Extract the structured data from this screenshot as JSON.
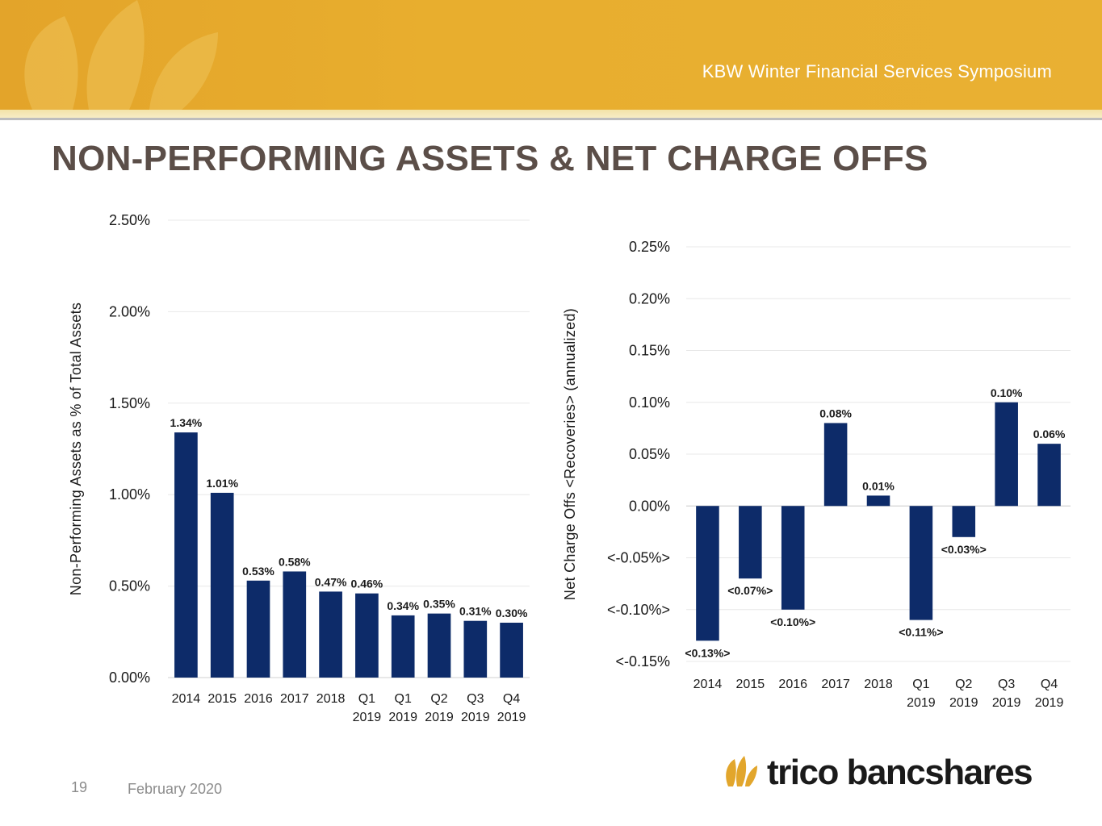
{
  "header": {
    "event_title": "KBW Winter Financial Services Symposium",
    "slide_title": "NON-PERFORMING ASSETS & NET CHARGE OFFS"
  },
  "footer": {
    "page_number": "19",
    "date": "February 2020",
    "company": "trico bancshares"
  },
  "colors": {
    "bar": "#0d2b69",
    "title": "#5b4e48",
    "banner": "#e6aa2d",
    "axis_text": "#1a1a1a",
    "grid": "#e8e8e8"
  },
  "chart_data": [
    {
      "type": "bar",
      "title": "",
      "ylabel": "Non-Performing Assets as % of Total Assets",
      "xlabel": "",
      "categories": [
        [
          "2014"
        ],
        [
          "2015"
        ],
        [
          "2016"
        ],
        [
          "2017"
        ],
        [
          "2018"
        ],
        [
          "Q1",
          "2019"
        ],
        [
          "Q1",
          "2019"
        ],
        [
          "Q2",
          "2019"
        ],
        [
          "Q3",
          "2019"
        ],
        [
          "Q4",
          "2019"
        ]
      ],
      "values": [
        1.34,
        1.01,
        0.53,
        0.58,
        0.47,
        0.46,
        0.34,
        0.35,
        0.31,
        0.3
      ],
      "data_labels": [
        "1.34%",
        "1.01%",
        "0.53%",
        "0.58%",
        "0.47%",
        "0.46%",
        "0.34%",
        "0.35%",
        "0.31%",
        "0.30%"
      ],
      "ylim": [
        0,
        2.5
      ],
      "yticks": [
        0,
        0.5,
        1.0,
        1.5,
        2.0,
        2.5
      ],
      "ytick_labels": [
        "0.00%",
        "0.50%",
        "1.00%",
        "1.50%",
        "2.00%",
        "2.50%"
      ],
      "grid": true
    },
    {
      "type": "bar",
      "title": "",
      "ylabel": "Net Charge Offs <Recoveries> (annualized)",
      "xlabel": "",
      "categories": [
        [
          "2014"
        ],
        [
          "2015"
        ],
        [
          "2016"
        ],
        [
          "2017"
        ],
        [
          "2018"
        ],
        [
          "Q1",
          "2019"
        ],
        [
          "Q2",
          "2019"
        ],
        [
          "Q3",
          "2019"
        ],
        [
          "Q4",
          "2019"
        ]
      ],
      "values": [
        -0.13,
        -0.07,
        -0.1,
        0.08,
        0.01,
        -0.11,
        -0.03,
        0.1,
        0.06
      ],
      "data_labels": [
        "<0.13%>",
        "<0.07%>",
        "<0.10%>",
        "0.08%",
        "0.01%",
        "<0.11%>",
        "<0.03%>",
        "0.10%",
        "0.06%"
      ],
      "ylim": [
        -0.15,
        0.25
      ],
      "yticks": [
        -0.15,
        -0.1,
        -0.05,
        0,
        0.05,
        0.1,
        0.15,
        0.2,
        0.25
      ],
      "ytick_labels": [
        "<-0.15%",
        "<-0.10%>",
        "<-0.05%>",
        "0.00%",
        "0.05%",
        "0.10%",
        "0.15%",
        "0.20%",
        "0.25%"
      ],
      "grid": true
    }
  ]
}
